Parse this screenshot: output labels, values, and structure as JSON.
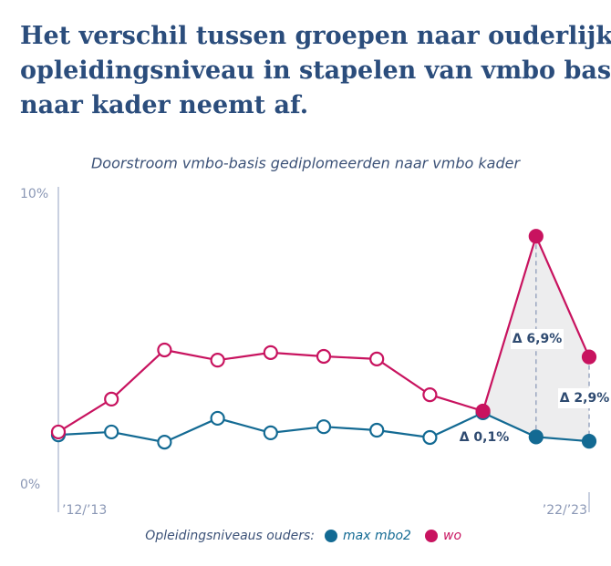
{
  "chart_data": {
    "type": "line",
    "title_lines": [
      "Het verschil tussen groepen naar ouderlijk",
      "opleidingsniveau in stapelen van vmbo basis",
      "naar kader neemt af."
    ],
    "subtitle": "Doorstroom vmbo-basis gediplomeerden naar vmbo kader",
    "categories": [
      "’12/’13",
      null,
      null,
      null,
      null,
      null,
      null,
      null,
      null,
      null,
      "’22/’23"
    ],
    "series": [
      {
        "name": "max mbo2",
        "color": "#136a93",
        "values": [
          1.72,
          1.82,
          1.47,
          2.29,
          1.79,
          2.0,
          1.88,
          1.63,
          2.48,
          1.65,
          1.5
        ]
      },
      {
        "name": "wo",
        "color": "#c8135f",
        "values": [
          1.82,
          2.95,
          4.64,
          4.29,
          4.55,
          4.42,
          4.33,
          3.1,
          2.54,
          8.55,
          4.4
        ]
      }
    ],
    "ylim": [
      0,
      10
    ],
    "yticks": [
      {
        "value": 0,
        "label": "0%"
      },
      {
        "value": 10,
        "label": "10%"
      }
    ],
    "grid": false,
    "legend_title": "Opleidingsniveaus ouders:",
    "legend": "bottom",
    "annotations": [
      "Δ 0,1%",
      "Δ 6,9%",
      "Δ 2,9%"
    ]
  }
}
